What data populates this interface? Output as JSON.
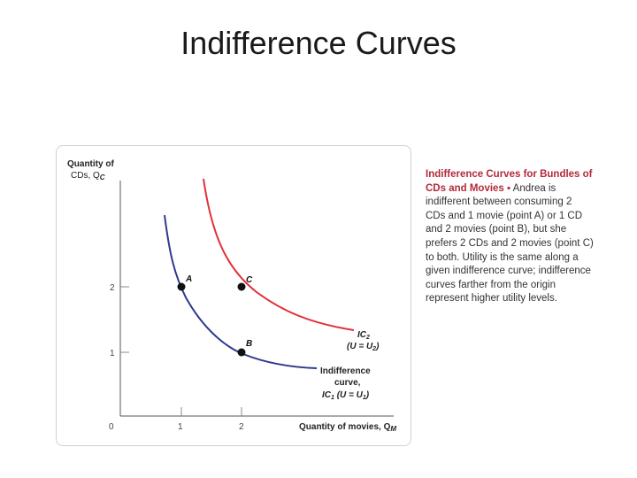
{
  "slide": {
    "title": "Indifference Curves"
  },
  "figure": {
    "y_axis_label_line1": "Quantity of",
    "y_axis_label_line2": "CDs, Q",
    "y_axis_label_sub": "C",
    "x_axis_label": "Quantity of movies, Q",
    "x_axis_label_sub": "M",
    "origin_label": "0",
    "y_ticks": [
      "2",
      "1"
    ],
    "x_ticks": [
      "1",
      "2"
    ],
    "points": {
      "a": "A",
      "b": "B",
      "c": "C"
    },
    "ic1_label_line1": "Indifference",
    "ic1_label_line2": "curve,",
    "ic1_label_line3": "IC",
    "ic1_label_sub": "1",
    "ic1_label_eq": "(U = U",
    "ic1_label_eq_sub": "1",
    "ic1_label_eq_end": ")",
    "ic2_label_line1": "IC",
    "ic2_label_sub": "2",
    "ic2_label_eq": "(U = U",
    "ic2_label_eq_sub": "2",
    "ic2_label_eq_end": ")",
    "colors": {
      "ic1": "#2e3a8c",
      "ic2": "#e0303a",
      "axis": "#555555",
      "point": "#111111"
    }
  },
  "caption": {
    "title": "Indifference Curves for Bundles of CDs and Movies",
    "bullet": "▪",
    "body": "Andrea is indifferent between consuming 2 CDs and 1 movie (point A) or 1 CD and 2 movies (point B), but she prefers 2 CDs and 2 movies (point C) to both. Utility is the same along a given indifference curve; indifference curves farther from the origin represent higher utility levels."
  }
}
